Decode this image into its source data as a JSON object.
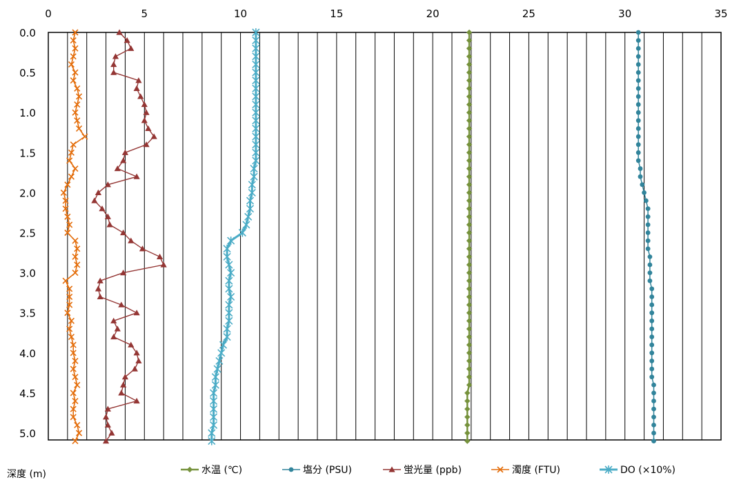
{
  "chart_data": {
    "type": "line",
    "x_axis_position": "top",
    "y_axis_reversed": true,
    "xlim": [
      0,
      35
    ],
    "ylim": [
      0,
      5.1
    ],
    "x_ticks": [
      "0",
      "5",
      "10",
      "15",
      "20",
      "25",
      "30",
      "35"
    ],
    "y_ticks": [
      "0.0",
      "0.5",
      "1.0",
      "1.5",
      "2.0",
      "2.5",
      "3.0",
      "3.5",
      "4.0",
      "4.5",
      "5.0"
    ],
    "ylabel": "深度 (m)",
    "grid": "vertical every 1 unit",
    "legend_position": "bottom",
    "depth": [
      0.0,
      0.1,
      0.2,
      0.3,
      0.4,
      0.5,
      0.6,
      0.7,
      0.8,
      0.9,
      1.0,
      1.1,
      1.2,
      1.3,
      1.4,
      1.5,
      1.6,
      1.7,
      1.8,
      1.9,
      2.0,
      2.1,
      2.2,
      2.3,
      2.4,
      2.5,
      2.6,
      2.7,
      2.8,
      2.9,
      3.0,
      3.1,
      3.2,
      3.3,
      3.4,
      3.5,
      3.6,
      3.7,
      3.8,
      3.9,
      4.0,
      4.1,
      4.2,
      4.3,
      4.4,
      4.5,
      4.6,
      4.7,
      4.8,
      4.9,
      5.0,
      5.1
    ],
    "series": [
      {
        "name": "水温 (℃)",
        "color": "#76923c",
        "marker": "diamond",
        "values": [
          21.9,
          21.9,
          21.9,
          21.9,
          21.9,
          21.9,
          21.9,
          21.9,
          21.9,
          21.9,
          21.9,
          21.9,
          21.9,
          21.9,
          21.9,
          21.9,
          21.9,
          21.9,
          21.9,
          21.9,
          21.9,
          21.9,
          21.9,
          21.9,
          21.9,
          21.9,
          21.9,
          21.9,
          21.9,
          21.9,
          21.9,
          21.9,
          21.9,
          21.9,
          21.9,
          21.9,
          21.9,
          21.9,
          21.9,
          21.9,
          21.9,
          21.9,
          21.9,
          21.9,
          21.9,
          21.8,
          21.8,
          21.8,
          21.8,
          21.8,
          21.8,
          21.8
        ]
      },
      {
        "name": "塩分 (PSU)",
        "color": "#31849b",
        "marker": "circle",
        "values": [
          30.7,
          30.7,
          30.7,
          30.7,
          30.7,
          30.7,
          30.7,
          30.7,
          30.7,
          30.7,
          30.7,
          30.7,
          30.7,
          30.7,
          30.7,
          30.7,
          30.7,
          30.8,
          30.8,
          30.9,
          31.0,
          31.1,
          31.2,
          31.2,
          31.2,
          31.2,
          31.2,
          31.2,
          31.3,
          31.3,
          31.3,
          31.3,
          31.4,
          31.4,
          31.4,
          31.4,
          31.4,
          31.4,
          31.4,
          31.4,
          31.4,
          31.4,
          31.4,
          31.4,
          31.5,
          31.5,
          31.5,
          31.5,
          31.5,
          31.5,
          31.5,
          31.5
        ]
      },
      {
        "name": "蛍光量 (ppb)",
        "color": "#943634",
        "marker": "triangle",
        "values": [
          3.7,
          4.1,
          4.3,
          3.5,
          3.4,
          3.4,
          4.7,
          4.6,
          4.8,
          5.0,
          5.1,
          5.0,
          5.2,
          5.5,
          5.1,
          4.0,
          3.9,
          3.6,
          4.6,
          3.1,
          2.6,
          2.4,
          2.8,
          3.1,
          3.2,
          3.9,
          4.3,
          4.9,
          5.8,
          6.0,
          3.9,
          2.7,
          2.6,
          2.7,
          3.8,
          4.6,
          3.4,
          3.6,
          3.4,
          4.3,
          4.6,
          4.7,
          4.5,
          4.0,
          3.9,
          3.8,
          4.6,
          3.1,
          3.0,
          3.1,
          3.3,
          3.0
        ]
      },
      {
        "name": "濁度 (FTU)",
        "color": "#e36c09",
        "marker": "x",
        "values": [
          1.4,
          1.3,
          1.4,
          1.3,
          1.2,
          1.4,
          1.3,
          1.5,
          1.6,
          1.5,
          1.4,
          1.5,
          1.6,
          1.9,
          1.3,
          1.2,
          1.1,
          1.4,
          1.2,
          1.0,
          0.8,
          0.9,
          0.9,
          1.0,
          1.1,
          1.0,
          1.4,
          1.5,
          1.4,
          1.5,
          1.4,
          0.9,
          1.1,
          1.1,
          1.1,
          1.0,
          1.2,
          1.1,
          1.2,
          1.3,
          1.3,
          1.4,
          1.3,
          1.4,
          1.5,
          1.3,
          1.4,
          1.3,
          1.3,
          1.5,
          1.6,
          1.4
        ]
      },
      {
        "name": "DO (×10%)",
        "color": "#4bacc6",
        "marker": "asterisk",
        "values": [
          10.8,
          10.8,
          10.8,
          10.8,
          10.8,
          10.8,
          10.8,
          10.8,
          10.8,
          10.8,
          10.8,
          10.8,
          10.8,
          10.8,
          10.8,
          10.8,
          10.8,
          10.7,
          10.7,
          10.6,
          10.6,
          10.5,
          10.5,
          10.4,
          10.3,
          10.1,
          9.5,
          9.3,
          9.3,
          9.4,
          9.5,
          9.4,
          9.4,
          9.5,
          9.4,
          9.4,
          9.4,
          9.3,
          9.3,
          9.1,
          9.0,
          8.9,
          8.8,
          8.7,
          8.7,
          8.6,
          8.6,
          8.6,
          8.6,
          8.6,
          8.5,
          8.5
        ]
      }
    ]
  },
  "legend_labels": [
    "水温 (℃)",
    "塩分 (PSU)",
    "蛍光量 (ppb)",
    "濁度 (FTU)",
    "DO (×10%)"
  ]
}
